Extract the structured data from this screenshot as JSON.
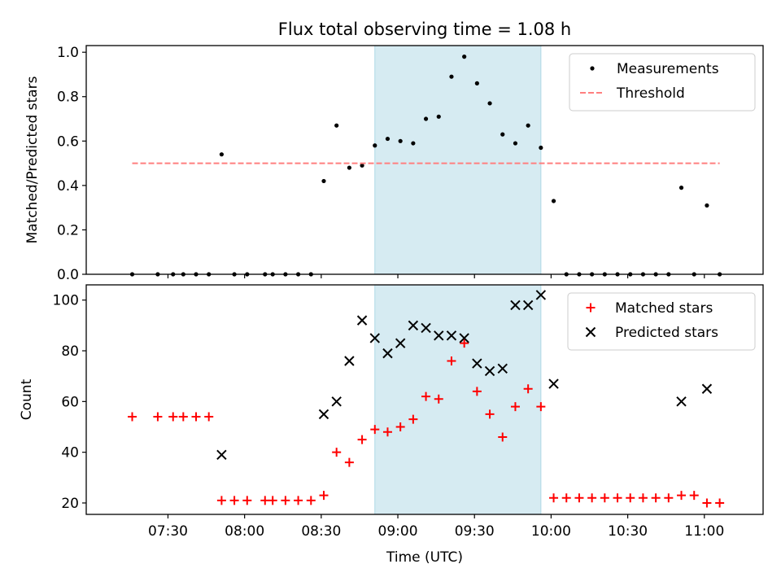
{
  "chart_data": {
    "type": "scatter",
    "title": "Flux total observing time = 1.08 h",
    "xlabel": "Time (UTC)",
    "x_ticks": [
      "07:30",
      "08:00",
      "08:30",
      "09:00",
      "09:30",
      "10:00",
      "10:30",
      "11:00"
    ],
    "shaded_interval": [
      "08:51",
      "09:56"
    ],
    "shade_color": "#add8e6",
    "panels": [
      {
        "ylabel": "Matched/Predicted stars",
        "ylim": [
          0,
          1.03
        ],
        "y_ticks": [
          "0.0",
          "0.2",
          "0.4",
          "0.6",
          "0.8",
          "1.0"
        ],
        "legend_position": "top-right",
        "series": [
          {
            "name": "Measurements",
            "marker": "dot",
            "color": "#000000",
            "points": [
              [
                "07:16",
                0.0
              ],
              [
                "07:26",
                0.0
              ],
              [
                "07:32",
                0.0
              ],
              [
                "07:36",
                0.0
              ],
              [
                "07:41",
                0.0
              ],
              [
                "07:46",
                0.0
              ],
              [
                "07:51",
                0.54
              ],
              [
                "07:56",
                0.0
              ],
              [
                "08:01",
                0.0
              ],
              [
                "08:08",
                0.0
              ],
              [
                "08:11",
                0.0
              ],
              [
                "08:16",
                0.0
              ],
              [
                "08:21",
                0.0
              ],
              [
                "08:26",
                0.0
              ],
              [
                "08:31",
                0.42
              ],
              [
                "08:36",
                0.67
              ],
              [
                "08:41",
                0.48
              ],
              [
                "08:46",
                0.49
              ],
              [
                "08:51",
                0.58
              ],
              [
                "08:56",
                0.61
              ],
              [
                "09:01",
                0.6
              ],
              [
                "09:06",
                0.59
              ],
              [
                "09:11",
                0.7
              ],
              [
                "09:16",
                0.71
              ],
              [
                "09:21",
                0.89
              ],
              [
                "09:26",
                0.98
              ],
              [
                "09:31",
                0.86
              ],
              [
                "09:36",
                0.77
              ],
              [
                "09:41",
                0.63
              ],
              [
                "09:46",
                0.59
              ],
              [
                "09:51",
                0.67
              ],
              [
                "09:56",
                0.57
              ],
              [
                "10:01",
                0.33
              ],
              [
                "10:06",
                0.0
              ],
              [
                "10:11",
                0.0
              ],
              [
                "10:16",
                0.0
              ],
              [
                "10:21",
                0.0
              ],
              [
                "10:26",
                0.0
              ],
              [
                "10:31",
                0.0
              ],
              [
                "10:36",
                0.0
              ],
              [
                "10:41",
                0.0
              ],
              [
                "10:46",
                0.0
              ],
              [
                "10:51",
                0.39
              ],
              [
                "10:56",
                0.0
              ],
              [
                "11:01",
                0.31
              ],
              [
                "11:06",
                0.0
              ]
            ]
          },
          {
            "name": "Threshold",
            "marker": "dashed-line",
            "color": "#ff7f7f",
            "points": [
              [
                "07:16",
                0.5
              ],
              [
                "11:06",
                0.5
              ]
            ]
          }
        ]
      },
      {
        "ylabel": "Count",
        "ylim": [
          15.5,
          106
        ],
        "y_ticks": [
          "20",
          "40",
          "60",
          "80",
          "100"
        ],
        "legend_position": "top-right",
        "series": [
          {
            "name": "Matched stars",
            "marker": "plus",
            "color": "#ff0000",
            "points": [
              [
                "07:16",
                54
              ],
              [
                "07:26",
                54
              ],
              [
                "07:32",
                54
              ],
              [
                "07:36",
                54
              ],
              [
                "07:41",
                54
              ],
              [
                "07:46",
                54
              ],
              [
                "07:51",
                21
              ],
              [
                "07:56",
                21
              ],
              [
                "08:01",
                21
              ],
              [
                "08:08",
                21
              ],
              [
                "08:11",
                21
              ],
              [
                "08:16",
                21
              ],
              [
                "08:21",
                21
              ],
              [
                "08:26",
                21
              ],
              [
                "08:31",
                23
              ],
              [
                "08:36",
                40
              ],
              [
                "08:41",
                36
              ],
              [
                "08:46",
                45
              ],
              [
                "08:51",
                49
              ],
              [
                "08:56",
                48
              ],
              [
                "09:01",
                50
              ],
              [
                "09:06",
                53
              ],
              [
                "09:11",
                62
              ],
              [
                "09:16",
                61
              ],
              [
                "09:21",
                76
              ],
              [
                "09:26",
                83
              ],
              [
                "09:31",
                64
              ],
              [
                "09:36",
                55
              ],
              [
                "09:41",
                46
              ],
              [
                "09:46",
                58
              ],
              [
                "09:51",
                65
              ],
              [
                "09:56",
                58
              ],
              [
                "10:01",
                22
              ],
              [
                "10:06",
                22
              ],
              [
                "10:11",
                22
              ],
              [
                "10:16",
                22
              ],
              [
                "10:21",
                22
              ],
              [
                "10:26",
                22
              ],
              [
                "10:31",
                22
              ],
              [
                "10:36",
                22
              ],
              [
                "10:41",
                22
              ],
              [
                "10:46",
                22
              ],
              [
                "10:51",
                23
              ],
              [
                "10:56",
                23
              ],
              [
                "11:01",
                20
              ],
              [
                "11:06",
                20
              ]
            ]
          },
          {
            "name": "Predicted stars",
            "marker": "x",
            "color": "#000000",
            "points": [
              [
                "07:51",
                39
              ],
              [
                "08:31",
                55
              ],
              [
                "08:36",
                60
              ],
              [
                "08:41",
                76
              ],
              [
                "08:46",
                92
              ],
              [
                "08:51",
                85
              ],
              [
                "08:56",
                79
              ],
              [
                "09:01",
                83
              ],
              [
                "09:06",
                90
              ],
              [
                "09:11",
                89
              ],
              [
                "09:16",
                86
              ],
              [
                "09:21",
                86
              ],
              [
                "09:26",
                85
              ],
              [
                "09:31",
                75
              ],
              [
                "09:36",
                72
              ],
              [
                "09:41",
                73
              ],
              [
                "09:46",
                98
              ],
              [
                "09:51",
                98
              ],
              [
                "09:56",
                102
              ],
              [
                "10:01",
                67
              ],
              [
                "10:51",
                60
              ],
              [
                "11:01",
                65
              ]
            ]
          }
        ]
      }
    ]
  }
}
